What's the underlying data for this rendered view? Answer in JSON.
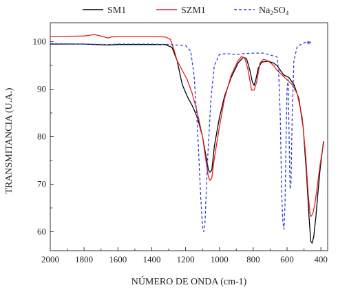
{
  "chart_data": {
    "type": "line",
    "xlabel": "NÚMERO DE ONDA (cm-1)",
    "ylabel": "TRANSMITANCIA (U.A.)",
    "xlim": [
      2000,
      360
    ],
    "ylim": [
      56,
      104
    ],
    "x_reversed": true,
    "x_ticks": [
      2000,
      1800,
      1600,
      1400,
      1200,
      1000,
      800,
      600,
      400
    ],
    "y_ticks": [
      60,
      70,
      80,
      90,
      100
    ],
    "grid": false,
    "legend_position": "top",
    "series": [
      {
        "name": "SM1",
        "legend_parts": [
          {
            "text": "SM1",
            "sub": false
          }
        ],
        "color": "#000000",
        "style": "solid",
        "points": [
          [
            2000,
            99.5
          ],
          [
            1800,
            99.5
          ],
          [
            1660,
            99.3
          ],
          [
            1600,
            99.4
          ],
          [
            1400,
            99.4
          ],
          [
            1320,
            99.4
          ],
          [
            1280,
            98.8
          ],
          [
            1250,
            96
          ],
          [
            1220,
            91
          ],
          [
            1190,
            88.5
          ],
          [
            1160,
            86.5
          ],
          [
            1130,
            84
          ],
          [
            1100,
            80
          ],
          [
            1080,
            76
          ],
          [
            1065,
            73
          ],
          [
            1055,
            72.5
          ],
          [
            1045,
            73
          ],
          [
            1030,
            78
          ],
          [
            1000,
            84
          ],
          [
            970,
            88.5
          ],
          [
            930,
            92.5
          ],
          [
            890,
            95.5
          ],
          [
            860,
            96.7
          ],
          [
            840,
            96.5
          ],
          [
            820,
            94
          ],
          [
            805,
            91.5
          ],
          [
            795,
            90.8
          ],
          [
            785,
            92
          ],
          [
            770,
            94.5
          ],
          [
            750,
            95.7
          ],
          [
            730,
            95.8
          ],
          [
            710,
            95.9
          ],
          [
            680,
            95.5
          ],
          [
            660,
            95
          ],
          [
            640,
            94
          ],
          [
            620,
            93
          ],
          [
            590,
            92.5
          ],
          [
            560,
            91
          ],
          [
            530,
            88
          ],
          [
            505,
            82
          ],
          [
            485,
            72
          ],
          [
            470,
            63
          ],
          [
            460,
            58
          ],
          [
            452,
            57.6
          ],
          [
            442,
            59
          ],
          [
            430,
            63
          ],
          [
            418,
            68
          ],
          [
            405,
            73
          ],
          [
            395,
            76
          ],
          [
            385,
            79
          ]
        ]
      },
      {
        "name": "SZM1",
        "legend_parts": [
          {
            "text": "SZM1",
            "sub": false
          }
        ],
        "color": "#e32020",
        "style": "solid",
        "points": [
          [
            2000,
            101.1
          ],
          [
            1800,
            101.2
          ],
          [
            1740,
            101.5
          ],
          [
            1700,
            101.2
          ],
          [
            1660,
            100.8
          ],
          [
            1640,
            101.0
          ],
          [
            1600,
            101.1
          ],
          [
            1400,
            101.1
          ],
          [
            1320,
            101.0
          ],
          [
            1290,
            100.5
          ],
          [
            1270,
            98.5
          ],
          [
            1250,
            96
          ],
          [
            1220,
            94
          ],
          [
            1190,
            92
          ],
          [
            1160,
            89
          ],
          [
            1130,
            85
          ],
          [
            1100,
            80
          ],
          [
            1080,
            75
          ],
          [
            1065,
            71.5
          ],
          [
            1055,
            70.8
          ],
          [
            1045,
            71.3
          ],
          [
            1030,
            75.5
          ],
          [
            1000,
            82
          ],
          [
            970,
            88
          ],
          [
            930,
            93
          ],
          [
            890,
            96
          ],
          [
            870,
            96.9
          ],
          [
            850,
            96.5
          ],
          [
            830,
            94
          ],
          [
            810,
            89.8
          ],
          [
            795,
            89.8
          ],
          [
            780,
            91.5
          ],
          [
            760,
            95.5
          ],
          [
            740,
            96.3
          ],
          [
            720,
            96.1
          ],
          [
            700,
            95.6
          ],
          [
            680,
            95
          ],
          [
            660,
            94
          ],
          [
            630,
            93
          ],
          [
            600,
            92
          ],
          [
            570,
            91
          ],
          [
            540,
            89
          ],
          [
            510,
            84
          ],
          [
            490,
            76
          ],
          [
            475,
            68
          ],
          [
            465,
            64
          ],
          [
            458,
            63.2
          ],
          [
            448,
            63.8
          ],
          [
            435,
            66
          ],
          [
            420,
            70
          ],
          [
            405,
            74
          ],
          [
            392,
            77
          ],
          [
            382,
            79
          ]
        ]
      },
      {
        "name": "Na2SO4",
        "legend_parts": [
          {
            "text": "Na",
            "sub": false
          },
          {
            "text": "2",
            "sub": true
          },
          {
            "text": "SO",
            "sub": false
          },
          {
            "text": "4",
            "sub": true
          }
        ],
        "color": "#2f3fd0",
        "style": "dashed",
        "points": [
          [
            2000,
            99.6
          ],
          [
            1800,
            99.5
          ],
          [
            1660,
            99.4
          ],
          [
            1600,
            99.5
          ],
          [
            1400,
            99.5
          ],
          [
            1300,
            99.4
          ],
          [
            1250,
            99.3
          ],
          [
            1200,
            99.2
          ],
          [
            1170,
            98
          ],
          [
            1150,
            93
          ],
          [
            1130,
            82
          ],
          [
            1110,
            67
          ],
          [
            1100,
            61
          ],
          [
            1093,
            60
          ],
          [
            1085,
            62
          ],
          [
            1070,
            75
          ],
          [
            1050,
            88
          ],
          [
            1030,
            95
          ],
          [
            1000,
            97.3
          ],
          [
            960,
            97.5
          ],
          [
            900,
            97.3
          ],
          [
            850,
            97.5
          ],
          [
            800,
            97.6
          ],
          [
            740,
            97.6
          ],
          [
            700,
            97.2
          ],
          [
            660,
            96.8
          ],
          [
            650,
            94
          ],
          [
            640,
            84
          ],
          [
            632,
            68
          ],
          [
            625,
            62
          ],
          [
            618,
            60.5
          ],
          [
            612,
            66
          ],
          [
            606,
            80
          ],
          [
            600,
            90
          ],
          [
            594,
            92
          ],
          [
            588,
            80
          ],
          [
            582,
            69
          ],
          [
            577,
            70
          ],
          [
            570,
            84
          ],
          [
            560,
            96
          ],
          [
            540,
            99
          ],
          [
            510,
            99.6
          ],
          [
            490,
            99.9
          ],
          [
            480,
            99.6
          ],
          [
            474,
            100.3
          ],
          [
            470,
            99.4
          ],
          [
            465,
            100
          ],
          [
            460,
            99.7
          ]
        ]
      }
    ]
  }
}
